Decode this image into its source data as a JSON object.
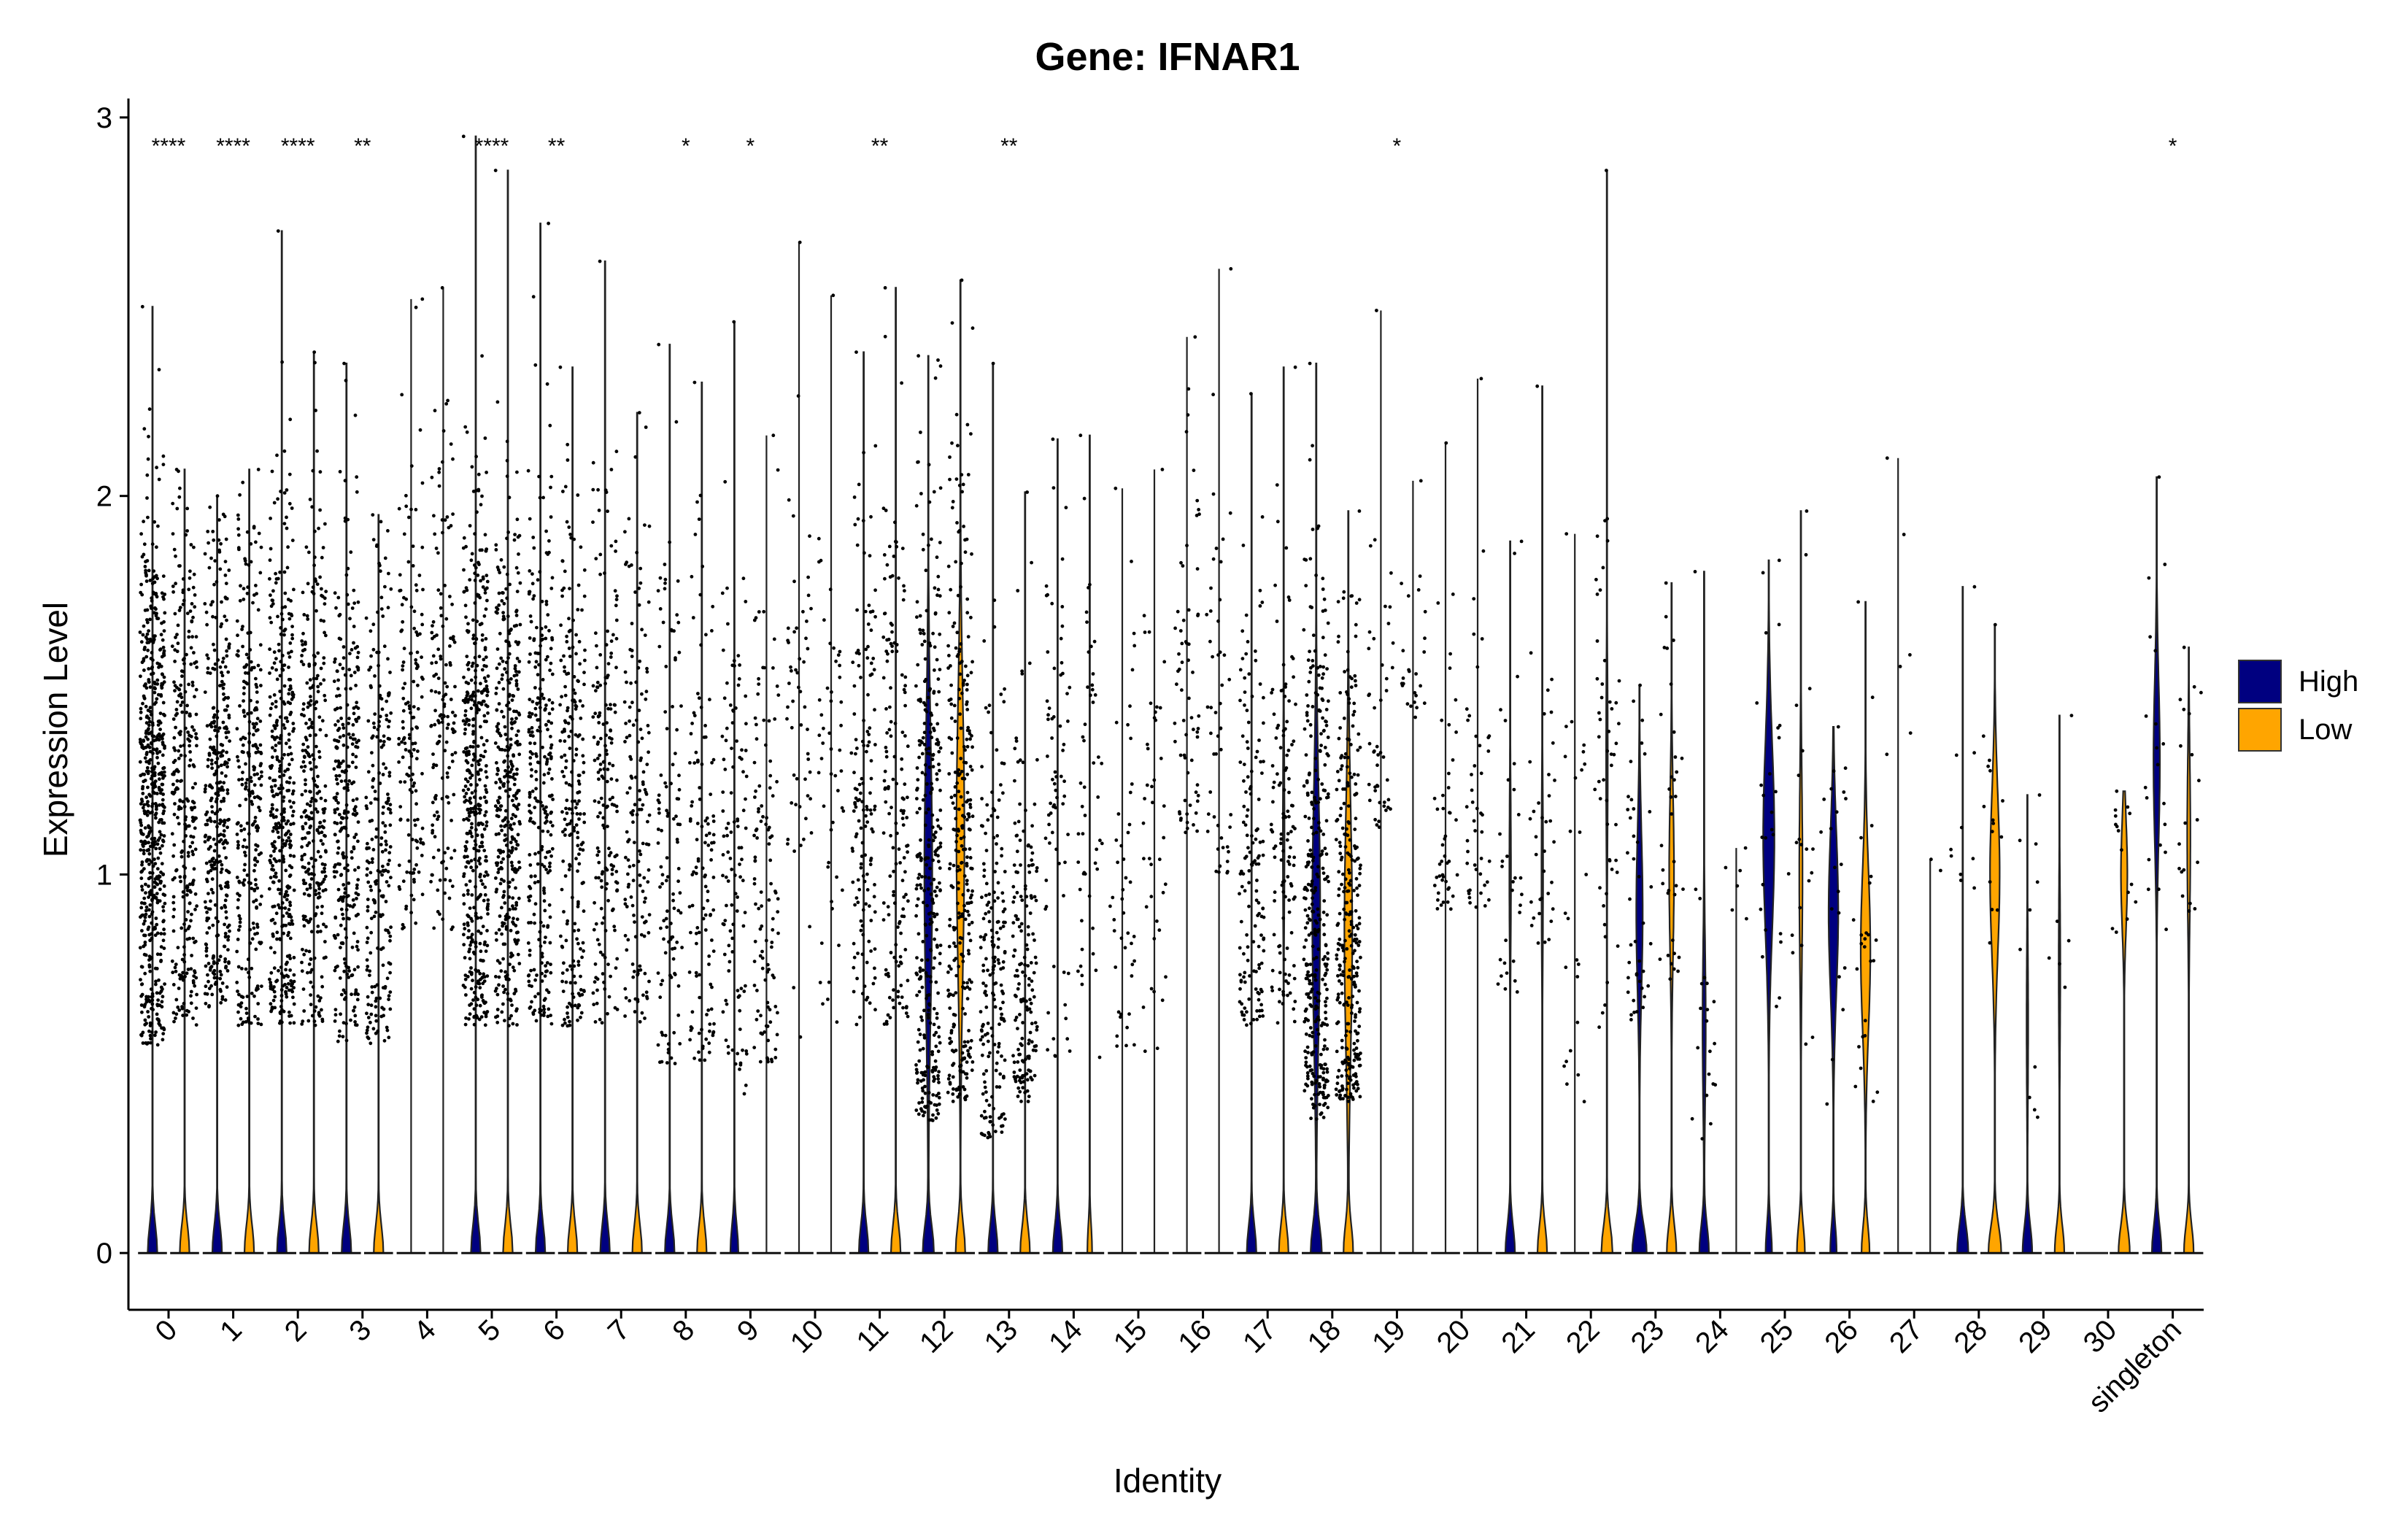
{
  "chart_data": {
    "type": "violin",
    "title": "Gene: IFNAR1",
    "xlabel": "Identity",
    "ylabel": "Expression Level",
    "ylim": [
      -0.15,
      3.05
    ],
    "yticks": [
      0,
      1,
      2,
      3
    ],
    "grid": false,
    "legend": {
      "position": "right",
      "entries": [
        {
          "name": "High",
          "color": "#000080"
        },
        {
          "name": "Low",
          "color": "#FFA500"
        }
      ]
    },
    "categories": [
      "0",
      "1",
      "2",
      "3",
      "4",
      "5",
      "6",
      "7",
      "8",
      "9",
      "10",
      "11",
      "12",
      "13",
      "14",
      "15",
      "16",
      "17",
      "18",
      "19",
      "20",
      "21",
      "22",
      "23",
      "24",
      "25",
      "26",
      "27",
      "28",
      "29",
      "30",
      "singleton"
    ],
    "significance": [
      "****",
      "****",
      "****",
      "**",
      "",
      "****",
      "**",
      "",
      "*",
      "*",
      "",
      "**",
      "",
      "**",
      "",
      "",
      "",
      "",
      "",
      "*",
      "",
      "",
      "",
      "",
      "",
      "",
      "",
      "",
      "",
      "",
      "",
      "*"
    ],
    "series": [
      {
        "name": "High",
        "color": "#000080",
        "max": [
          2.5,
          2.0,
          2.7,
          2.35,
          2.52,
          2.95,
          2.72,
          2.62,
          2.4,
          2.46,
          2.67,
          2.38,
          2.37,
          2.35,
          2.15,
          2.02,
          2.42,
          2.27,
          2.35,
          2.49,
          2.14,
          1.88,
          1.9,
          1.5,
          1.8,
          1.83,
          1.39,
          2.1,
          1.76,
          1.21,
          0,
          2.05
        ],
        "zero_mode": [
          0.3,
          0.3,
          0.3,
          0.3,
          0,
          0.3,
          0.3,
          0.3,
          0.3,
          0.25,
          0,
          0.3,
          0.35,
          0.3,
          0.3,
          0,
          0,
          0.3,
          0.35,
          0,
          0,
          0.3,
          0,
          0.45,
          0.3,
          0.2,
          0.2,
          0,
          0.35,
          0.3,
          0,
          0.3
        ],
        "upper_mode": [
          0,
          0,
          0,
          0,
          0,
          0,
          0,
          0,
          0,
          0,
          0,
          0,
          0.25,
          0,
          0,
          0,
          0,
          0,
          0.25,
          0,
          0,
          0.05,
          0,
          0.2,
          0.1,
          0.35,
          0.3,
          0,
          0,
          0.05,
          0,
          0.2
        ],
        "upper_center": [
          1.2,
          1.2,
          1.2,
          1.2,
          1.4,
          1.2,
          1.2,
          1.2,
          1.1,
          1.1,
          1.3,
          1.2,
          1.0,
          0.8,
          1.2,
          1.0,
          1.5,
          1.0,
          0.9,
          1.3,
          1.1,
          1.0,
          1.0,
          0.9,
          0.6,
          1.1,
          0.9,
          1.5,
          1.0,
          0.6,
          1.0,
          1.3
        ],
        "upper_spread": [
          0.4,
          0.35,
          0.4,
          0.4,
          0.35,
          0.4,
          0.4,
          0.4,
          0.4,
          0.4,
          0.4,
          0.4,
          0.5,
          0.35,
          0.35,
          0.35,
          0.35,
          0.35,
          0.45,
          0.3,
          0.3,
          0.3,
          0.4,
          0.3,
          0.3,
          0.35,
          0.3,
          0.3,
          0.3,
          0.3,
          0.3,
          0.3
        ],
        "dots": [
          600,
          350,
          400,
          300,
          150,
          450,
          280,
          180,
          110,
          110,
          55,
          140,
          330,
          190,
          70,
          45,
          65,
          140,
          340,
          45,
          45,
          30,
          25,
          40,
          20,
          25,
          20,
          6,
          10,
          10,
          0,
          20
        ],
        "dot_min": [
          0.55,
          0.65,
          0.6,
          0.55,
          0.85,
          0.6,
          0.6,
          0.6,
          0.5,
          0.4,
          0.4,
          0.6,
          0.35,
          0.3,
          0.5,
          0.5,
          1.1,
          0.6,
          0.35,
          1.1,
          0.9,
          0.6,
          0.4,
          0.6,
          0.3,
          0.5,
          0.3,
          1.0,
          0.9,
          0.3,
          0,
          0.8
        ]
      },
      {
        "name": "Low",
        "color": "#FFA500",
        "max": [
          2.07,
          2.07,
          2.38,
          1.95,
          2.55,
          2.86,
          2.34,
          2.22,
          2.3,
          2.16,
          2.53,
          2.55,
          2.57,
          2.01,
          2.16,
          2.07,
          2.6,
          2.34,
          1.96,
          2.04,
          2.31,
          2.29,
          2.86,
          1.77,
          1.07,
          1.96,
          1.72,
          1.04,
          1.66,
          1.42,
          1.22,
          1.6
        ],
        "zero_mode": [
          0.3,
          0.3,
          0.3,
          0.3,
          0,
          0.3,
          0.3,
          0.3,
          0.3,
          0,
          0,
          0.3,
          0.3,
          0.3,
          0.15,
          0,
          0,
          0.3,
          0.3,
          0,
          0,
          0.3,
          0.35,
          0.3,
          0,
          0.25,
          0.25,
          0,
          0.4,
          0.3,
          0.35,
          0.3
        ],
        "upper_mode": [
          0,
          0,
          0,
          0,
          0,
          0,
          0,
          0,
          0,
          0,
          0,
          0,
          0.25,
          0,
          0,
          0,
          0,
          0.05,
          0.25,
          0,
          0,
          0.05,
          0.05,
          0.15,
          0,
          0.1,
          0.3,
          0,
          0.3,
          0.05,
          0.2,
          0.1
        ],
        "upper_center": [
          1.2,
          1.2,
          1.2,
          1.1,
          1.4,
          1.2,
          1.2,
          1.2,
          1.1,
          1.1,
          1.3,
          1.2,
          1.1,
          0.8,
          1.2,
          1.0,
          1.4,
          1.1,
          0.85,
          1.5,
          1.1,
          1.0,
          1.3,
          1.0,
          0.9,
          1.0,
          0.8,
          1.0,
          1.0,
          0.75,
          1.0,
          1.1
        ],
        "upper_spread": [
          0.4,
          0.4,
          0.4,
          0.4,
          0.35,
          0.4,
          0.4,
          0.4,
          0.4,
          0.4,
          0.35,
          0.4,
          0.5,
          0.35,
          0.35,
          0.35,
          0.35,
          0.35,
          0.45,
          0.2,
          0.3,
          0.3,
          0.35,
          0.3,
          0.2,
          0.35,
          0.3,
          0.1,
          0.3,
          0.3,
          0.2,
          0.3
        ],
        "dots": [
          300,
          280,
          300,
          230,
          150,
          380,
          220,
          150,
          120,
          110,
          50,
          150,
          300,
          170,
          50,
          40,
          50,
          120,
          300,
          25,
          45,
          35,
          50,
          35,
          6,
          20,
          25,
          2,
          15,
          6,
          15,
          20
        ],
        "dot_min": [
          0.6,
          0.6,
          0.6,
          0.55,
          0.85,
          0.6,
          0.6,
          0.6,
          0.5,
          0.5,
          0.5,
          0.6,
          0.4,
          0.4,
          0.5,
          0.5,
          1.0,
          0.6,
          0.4,
          1.4,
          0.9,
          0.8,
          0.5,
          0.7,
          0.9,
          0.5,
          0.4,
          1.0,
          0.8,
          0.7,
          0.8,
          0.9
        ]
      }
    ]
  }
}
